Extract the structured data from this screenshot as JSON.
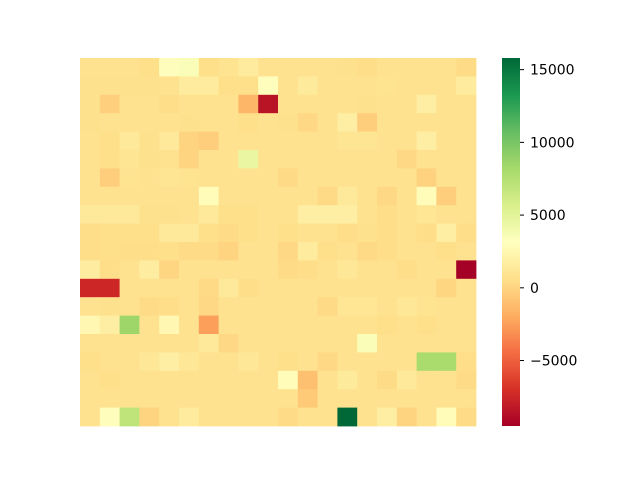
{
  "chart_data": {
    "type": "heatmap",
    "title": "",
    "xlabel": "",
    "ylabel": "",
    "rows": 20,
    "cols": 20,
    "colormap": "RdYlGn",
    "vmin": -9500,
    "vmax": 15800,
    "colorbar_ticks": [
      15000,
      10000,
      5000,
      0,
      -5000
    ],
    "colorbar_tick_labels": [
      "15000",
      "10000",
      "5000",
      "0",
      "−5000"
    ],
    "values": [
      [
        800,
        800,
        800,
        600,
        3000,
        3500,
        600,
        900,
        1500,
        800,
        800,
        800,
        800,
        700,
        500,
        800,
        800,
        800,
        800,
        400
      ],
      [
        700,
        700,
        700,
        700,
        800,
        1500,
        1500,
        600,
        600,
        3000,
        800,
        1400,
        800,
        800,
        800,
        900,
        800,
        800,
        800,
        1500
      ],
      [
        700,
        -200,
        800,
        800,
        500,
        800,
        800,
        800,
        -1500,
        -8500,
        800,
        800,
        800,
        800,
        700,
        800,
        800,
        1800,
        800,
        800
      ],
      [
        700,
        800,
        800,
        800,
        800,
        700,
        800,
        800,
        600,
        800,
        700,
        200,
        800,
        1800,
        -300,
        800,
        800,
        800,
        800,
        800
      ],
      [
        800,
        600,
        1300,
        700,
        1300,
        0,
        -300,
        800,
        800,
        800,
        800,
        800,
        800,
        1000,
        1000,
        800,
        800,
        1800,
        800,
        800
      ],
      [
        800,
        600,
        1000,
        700,
        800,
        0,
        800,
        800,
        4500,
        800,
        800,
        800,
        800,
        800,
        800,
        800,
        200,
        800,
        800,
        800
      ],
      [
        800,
        -300,
        900,
        800,
        1000,
        900,
        800,
        800,
        800,
        800,
        300,
        800,
        800,
        800,
        800,
        800,
        800,
        -100,
        800,
        800
      ],
      [
        800,
        800,
        800,
        800,
        800,
        800,
        2800,
        800,
        800,
        800,
        800,
        800,
        300,
        1300,
        800,
        200,
        800,
        2800,
        -300,
        800
      ],
      [
        1300,
        1300,
        1300,
        700,
        700,
        800,
        1300,
        600,
        600,
        800,
        800,
        1800,
        1800,
        1800,
        800,
        500,
        800,
        1100,
        800,
        800
      ],
      [
        500,
        600,
        600,
        600,
        1300,
        1300,
        600,
        400,
        600,
        800,
        600,
        800,
        800,
        500,
        700,
        500,
        800,
        500,
        1800,
        500
      ],
      [
        500,
        600,
        500,
        500,
        600,
        400,
        400,
        0,
        800,
        800,
        200,
        1500,
        600,
        800,
        300,
        500,
        800,
        800,
        600,
        800
      ],
      [
        1700,
        500,
        800,
        1700,
        100,
        800,
        800,
        800,
        800,
        800,
        400,
        500,
        800,
        1200,
        800,
        800,
        500,
        800,
        800,
        -9500
      ],
      [
        -7500,
        -7500,
        800,
        800,
        800,
        800,
        300,
        1300,
        500,
        800,
        800,
        800,
        800,
        800,
        800,
        800,
        800,
        800,
        100,
        800
      ],
      [
        800,
        700,
        800,
        400,
        500,
        800,
        200,
        800,
        800,
        800,
        800,
        800,
        300,
        1100,
        1100,
        800,
        1200,
        900,
        800,
        800
      ],
      [
        2500,
        1800,
        8500,
        800,
        2500,
        800,
        -2500,
        800,
        800,
        800,
        800,
        800,
        800,
        800,
        800,
        600,
        800,
        600,
        800,
        800
      ],
      [
        800,
        800,
        800,
        800,
        800,
        800,
        1300,
        200,
        800,
        800,
        800,
        800,
        800,
        800,
        3500,
        800,
        800,
        800,
        800,
        800
      ],
      [
        600,
        800,
        800,
        1200,
        1800,
        1200,
        800,
        800,
        1200,
        800,
        600,
        800,
        200,
        800,
        800,
        800,
        800,
        8000,
        8000,
        500
      ],
      [
        800,
        600,
        800,
        800,
        800,
        800,
        800,
        800,
        800,
        800,
        2800,
        -1000,
        800,
        1400,
        800,
        400,
        1300,
        800,
        800,
        400
      ],
      [
        800,
        800,
        800,
        800,
        800,
        800,
        800,
        800,
        800,
        800,
        800,
        -500,
        800,
        800,
        800,
        800,
        800,
        800,
        800,
        800
      ],
      [
        800,
        3000,
        7000,
        0,
        800,
        1500,
        800,
        800,
        800,
        800,
        400,
        800,
        800,
        15800,
        800,
        1800,
        0,
        800,
        2800,
        400
      ]
    ]
  }
}
